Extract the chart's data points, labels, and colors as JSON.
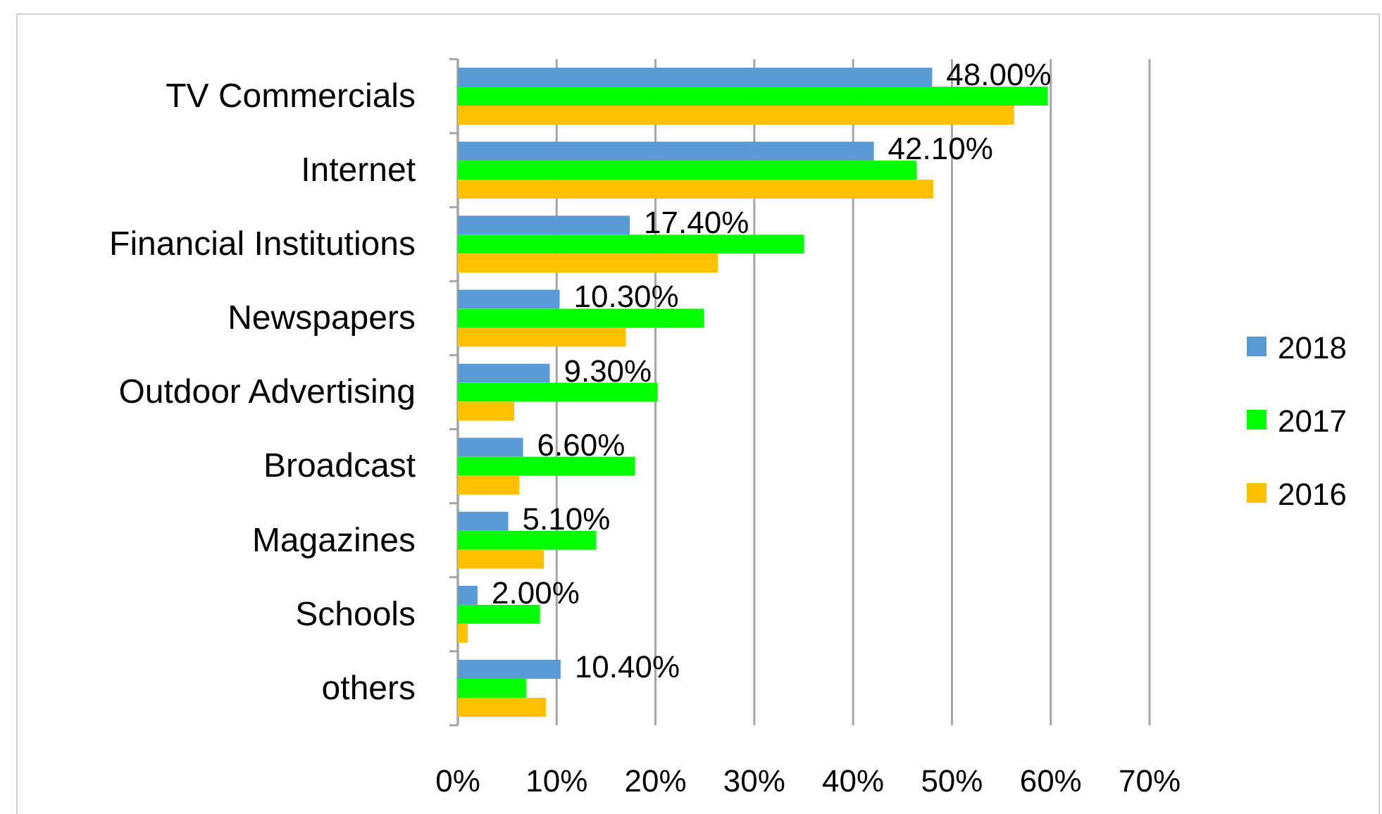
{
  "chart_data": {
    "type": "bar",
    "orientation": "horizontal",
    "categories": [
      "TV Commercials",
      "Internet",
      "Financial Institutions",
      "Newspapers",
      "Outdoor Advertising",
      "Broadcast",
      "Magazines",
      "Schools",
      "others"
    ],
    "series": [
      {
        "name": "2018",
        "color": "#5b9bd5",
        "values": [
          48.0,
          42.1,
          17.4,
          10.3,
          9.3,
          6.6,
          5.1,
          2.0,
          10.4
        ],
        "value_labels": [
          "48.00%",
          "42.10%",
          "17.40%",
          "10.30%",
          "9.30%",
          "6.60%",
          "5.10%",
          "2.00%",
          "10.40%"
        ]
      },
      {
        "name": "2017",
        "color": "#00ff00",
        "values": [
          59.7,
          46.4,
          35.0,
          24.9,
          20.2,
          17.9,
          14.0,
          8.3,
          6.9
        ]
      },
      {
        "name": "2016",
        "color": "#ffc000",
        "values": [
          56.3,
          48.1,
          26.3,
          17.0,
          5.7,
          6.2,
          8.7,
          1.0,
          8.9
        ]
      }
    ],
    "xlim": [
      0,
      70
    ],
    "xticks": [
      {
        "value": 0,
        "label": "0%"
      },
      {
        "value": 10,
        "label": "10%"
      },
      {
        "value": 20,
        "label": "20%"
      },
      {
        "value": 30,
        "label": "30%"
      },
      {
        "value": 40,
        "label": "40%"
      },
      {
        "value": 50,
        "label": "50%"
      },
      {
        "value": 60,
        "label": "60%"
      },
      {
        "value": 70,
        "label": "70%"
      }
    ],
    "grid": "x",
    "legend": "right"
  }
}
